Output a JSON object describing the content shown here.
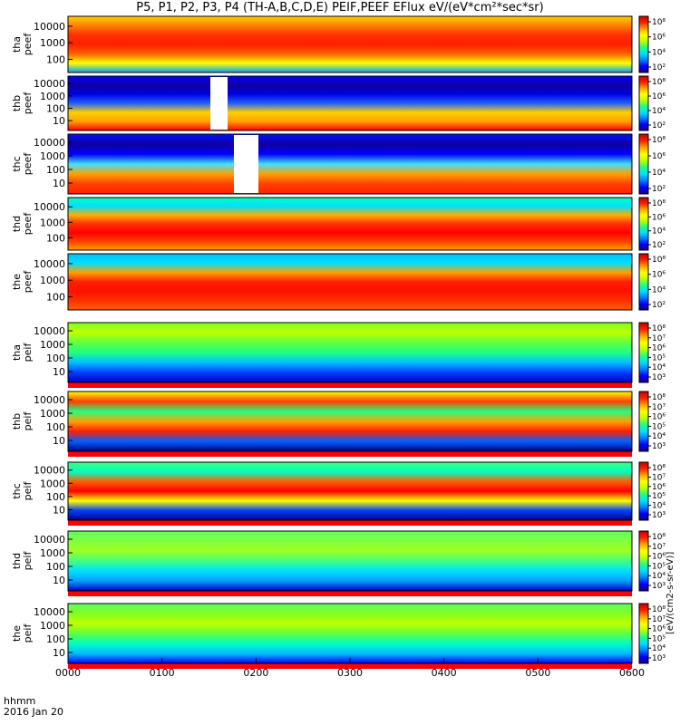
{
  "title": "P5, P1, P2, P3, P4 (TH-A,B,C,D,E) PEIF,PEEF EFlux eV/(eV*cm²*sec*sr)",
  "x_axis": {
    "label_line1": "hhmm",
    "label_line2": "2016 Jan 20",
    "ticks": [
      "0000",
      "0100",
      "0200",
      "0300",
      "0400",
      "0500",
      "0600"
    ]
  },
  "colorbar_units": "[eV/(cm2-s-sr-eV)]",
  "colormap": [
    "#1a0080",
    "#0000ff",
    "#0080ff",
    "#00e0ff",
    "#20ff80",
    "#c0ff00",
    "#ffff00",
    "#ffa000",
    "#ff2000",
    "#c00000"
  ],
  "chart_data": [
    {
      "type": "heatmap",
      "panel": "tha-peef",
      "ylabel": [
        "tha",
        "peef"
      ],
      "y_ticks": [
        "10000",
        "1000",
        "100"
      ],
      "cbar_ticks": [
        "10⁸",
        "10⁶",
        "10⁴",
        "10²"
      ],
      "x": [
        "0000",
        "0600"
      ]
    },
    {
      "type": "heatmap",
      "panel": "thb-peef",
      "ylabel": [
        "thb",
        "peef"
      ],
      "y_ticks": [
        "10000",
        "1000",
        "100",
        "10"
      ],
      "cbar_ticks": [
        "10⁸",
        "10⁶",
        "10⁴",
        "10²"
      ],
      "x": [
        "0000",
        "0600"
      ]
    },
    {
      "type": "heatmap",
      "panel": "thc-peef",
      "ylabel": [
        "thc",
        "peef"
      ],
      "y_ticks": [
        "10000",
        "1000",
        "100",
        "10"
      ],
      "cbar_ticks": [
        "10⁸",
        "10⁶",
        "10⁴",
        "10²"
      ],
      "x": [
        "0000",
        "0600"
      ]
    },
    {
      "type": "heatmap",
      "panel": "thd-peef",
      "ylabel": [
        "thd",
        "peef"
      ],
      "y_ticks": [
        "10000",
        "1000",
        "100"
      ],
      "cbar_ticks": [
        "10⁸",
        "10⁶",
        "10⁴",
        "10²"
      ],
      "x": [
        "0000",
        "0600"
      ]
    },
    {
      "type": "heatmap",
      "panel": "the-peef",
      "ylabel": [
        "the",
        "peef"
      ],
      "y_ticks": [
        "10000",
        "1000",
        "100"
      ],
      "cbar_ticks": [
        "10⁸",
        "10⁶",
        "10⁴",
        "10²"
      ],
      "x": [
        "0000",
        "0600"
      ]
    },
    {
      "type": "heatmap",
      "panel": "tha-peif",
      "ylabel": [
        "tha",
        "peif"
      ],
      "y_ticks": [
        "10000",
        "1000",
        "100",
        "10"
      ],
      "cbar_ticks": [
        "10⁸",
        "10⁷",
        "10⁶",
        "10⁵",
        "10⁴",
        "10³"
      ],
      "x": [
        "0000",
        "0600"
      ]
    },
    {
      "type": "heatmap",
      "panel": "thb-peif",
      "ylabel": [
        "thb",
        "peif"
      ],
      "y_ticks": [
        "10000",
        "1000",
        "100",
        "10"
      ],
      "cbar_ticks": [
        "10⁸",
        "10⁷",
        "10⁶",
        "10⁵",
        "10⁴",
        "10³"
      ],
      "x": [
        "0000",
        "0600"
      ]
    },
    {
      "type": "heatmap",
      "panel": "thc-peif",
      "ylabel": [
        "thc",
        "peif"
      ],
      "y_ticks": [
        "10000",
        "1000",
        "100",
        "10"
      ],
      "cbar_ticks": [
        "10⁸",
        "10⁷",
        "10⁶",
        "10⁵",
        "10⁴",
        "10³"
      ],
      "x": [
        "0000",
        "0600"
      ]
    },
    {
      "type": "heatmap",
      "panel": "thd-peif",
      "ylabel": [
        "thd",
        "peif"
      ],
      "y_ticks": [
        "10000",
        "1000",
        "100",
        "10"
      ],
      "cbar_ticks": [
        "10⁸",
        "10⁷",
        "10⁶",
        "10⁵",
        "10⁴",
        "10³"
      ],
      "x": [
        "0000",
        "0600"
      ]
    },
    {
      "type": "heatmap",
      "panel": "the-peif",
      "ylabel": [
        "the",
        "peif"
      ],
      "y_ticks": [
        "10000",
        "1000",
        "100",
        "10"
      ],
      "cbar_ticks": [
        "10⁸",
        "10⁷",
        "10⁶",
        "10⁵",
        "10⁴",
        "10³"
      ],
      "x": [
        "0000",
        "0600"
      ]
    }
  ]
}
